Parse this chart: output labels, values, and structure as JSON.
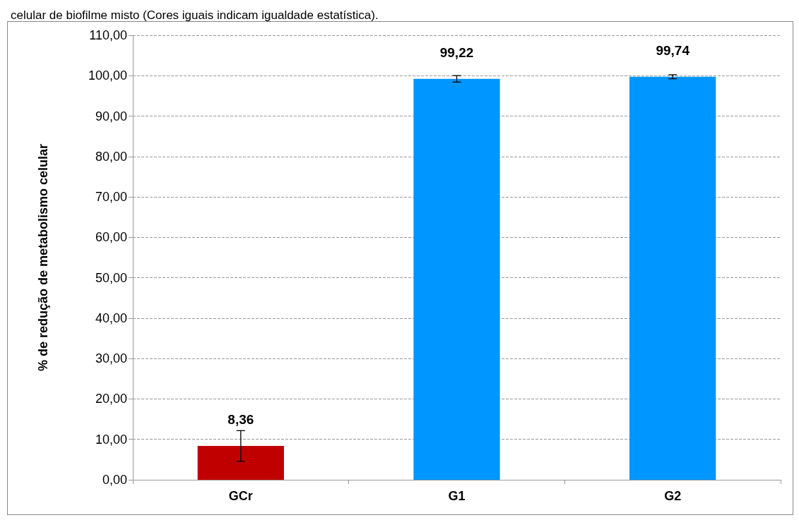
{
  "chart_data": {
    "type": "bar",
    "annotations": [
      "celular de biofilme misto (Cores iguais indicam igualdade estatística)."
    ],
    "ylabel": "% de redução de metabolismo celular",
    "categories": [
      "GCr",
      "G1",
      "G2"
    ],
    "values": [
      8.36,
      99.22,
      99.74
    ],
    "colors": [
      "#c00000",
      "#0096ff",
      "#0096ff"
    ],
    "errors": [
      3.8,
      0.8,
      0.5
    ],
    "value_labels": [
      "8,36",
      "99,22",
      "99,74"
    ],
    "ylim": [
      0,
      110
    ],
    "yticks": [
      {
        "value": 0,
        "label": "0,00"
      },
      {
        "value": 10,
        "label": "10,00"
      },
      {
        "value": 20,
        "label": "20,00"
      },
      {
        "value": 30,
        "label": "30,00"
      },
      {
        "value": 40,
        "label": "40,00"
      },
      {
        "value": 50,
        "label": "50,00"
      },
      {
        "value": 60,
        "label": "60,00"
      },
      {
        "value": 70,
        "label": "70,00"
      },
      {
        "value": 80,
        "label": "80,00"
      },
      {
        "value": 90,
        "label": "90,00"
      },
      {
        "value": 100,
        "label": "100,00"
      },
      {
        "value": 110,
        "label": "110,00"
      }
    ],
    "grid": "y"
  }
}
